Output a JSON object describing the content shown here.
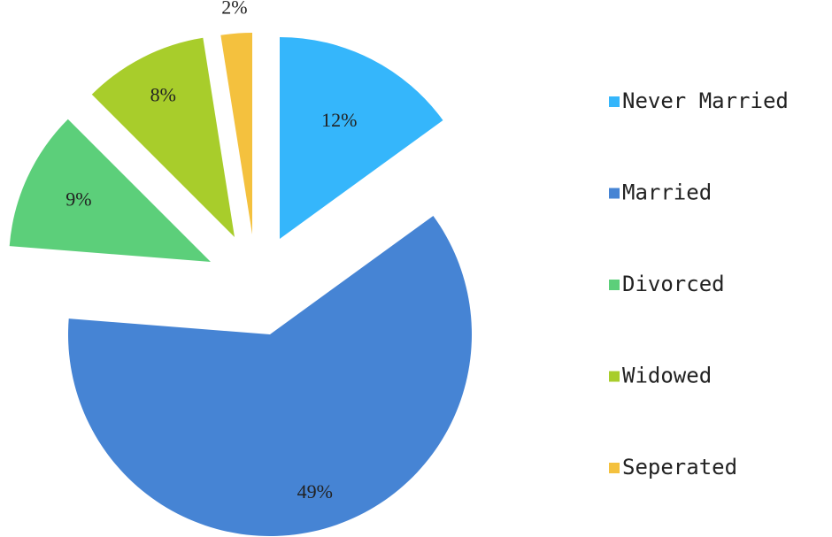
{
  "chart_data": {
    "type": "pie",
    "categories": [
      "Never Married",
      "Married",
      "Divorced",
      "Widowed",
      "Seperated"
    ],
    "values": [
      12,
      49,
      9,
      8,
      2
    ],
    "value_labels": [
      "12%",
      "49%",
      "9%",
      "8%",
      "2%"
    ],
    "colors": [
      "#35b6fb",
      "#4684d4",
      "#5ccf7a",
      "#a8cd2b",
      "#f4c13e"
    ],
    "legend": "right"
  }
}
